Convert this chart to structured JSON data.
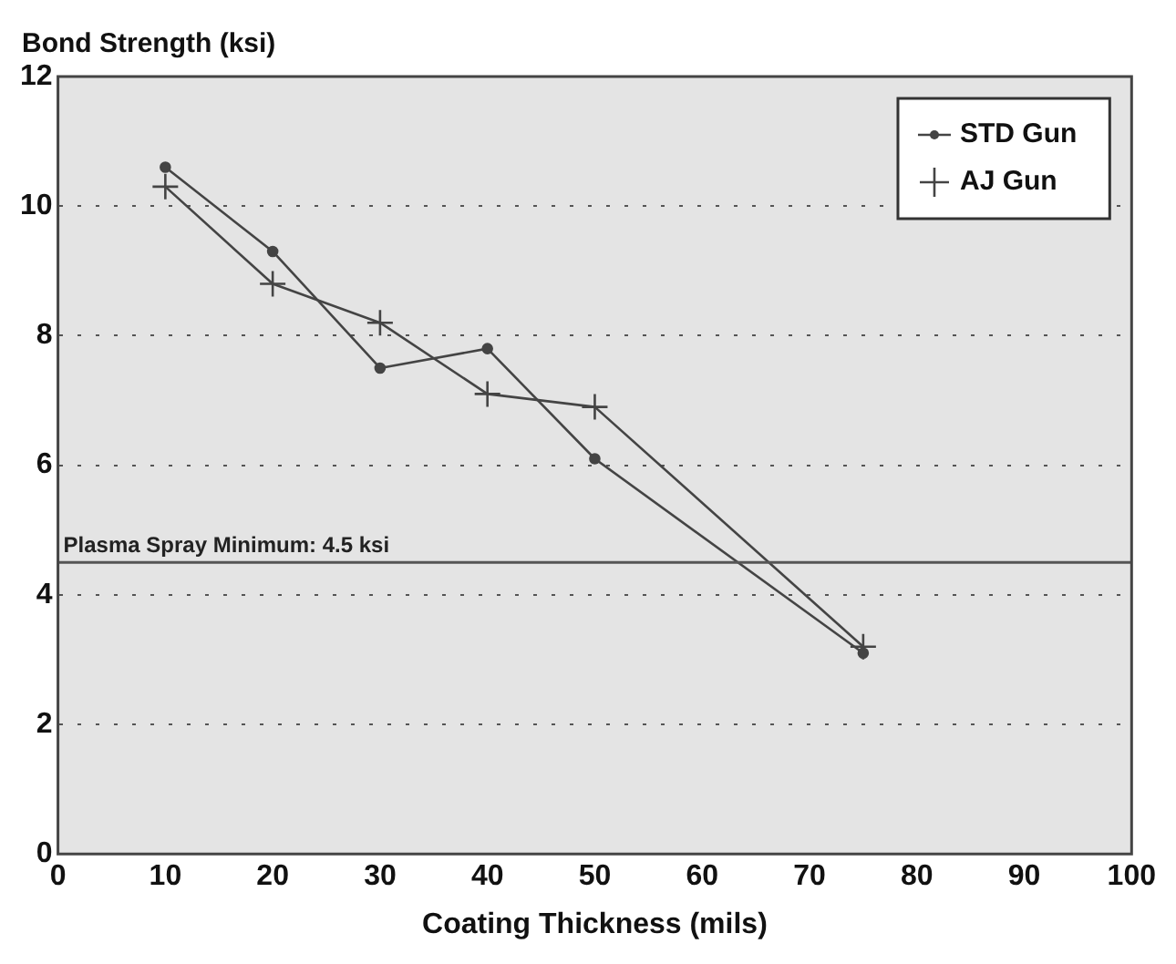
{
  "chart_data": {
    "type": "line",
    "xlabel": "Coating Thickness (mils)",
    "ylabel": "Bond Strength (ksi)",
    "xlim": [
      0,
      100
    ],
    "xticks": [
      0,
      10,
      20,
      30,
      40,
      50,
      60,
      70,
      80,
      90,
      100
    ],
    "ylim": [
      0,
      12
    ],
    "yticks": [
      0,
      2,
      4,
      6,
      8,
      10,
      12
    ],
    "grid": "y",
    "legend": "top right",
    "line_style": "solid",
    "x": [
      10,
      20,
      30,
      40,
      50,
      75
    ],
    "series": [
      {
        "name": "STD Gun",
        "color": "#444444",
        "marker": "circle",
        "values": [
          10.6,
          9.3,
          7.5,
          7.8,
          6.1,
          3.1
        ]
      },
      {
        "name": "AJ Gun",
        "color": "#444444",
        "marker": "cross",
        "values": [
          10.3,
          8.8,
          8.2,
          7.1,
          6.9,
          3.2
        ]
      }
    ],
    "ref_lines": [
      {
        "axis": "y",
        "value": 4.5,
        "label": "Plasma Spray Minimum: 4.5 ksi",
        "color": "#555555"
      }
    ]
  }
}
